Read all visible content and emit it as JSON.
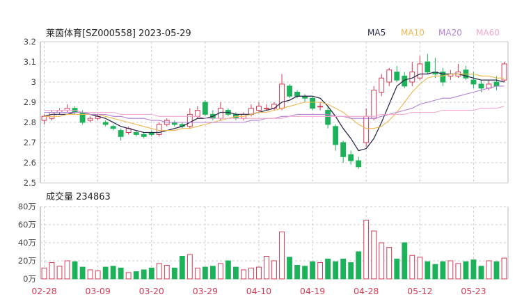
{
  "title": "莱茵体育[SZ000558] 2023-05-29",
  "volume_title": "成交量 234863",
  "legend": [
    {
      "label": "MA5",
      "color": "#2a2a4a"
    },
    {
      "label": "MA10",
      "color": "#f0b64e"
    },
    {
      "label": "MA20",
      "color": "#b67fd6"
    },
    {
      "label": "MA60",
      "color": "#f3a9cf"
    }
  ],
  "colors": {
    "up": "#d63a54",
    "down": "#1db25a",
    "grid": "#cccccc",
    "axis": "#444444",
    "date_label": "#d63a54"
  },
  "chart_data": [
    {
      "type": "candlestick",
      "title": "莱茵体育[SZ000558] 2023-05-29",
      "dates": [
        "02-28",
        "03-01",
        "03-02",
        "03-03",
        "03-06",
        "03-07",
        "03-08",
        "03-09",
        "03-10",
        "03-13",
        "03-14",
        "03-15",
        "03-16",
        "03-17",
        "03-20",
        "03-21",
        "03-22",
        "03-23",
        "03-24",
        "03-27",
        "03-28",
        "03-29",
        "03-30",
        "03-31",
        "04-03",
        "04-04",
        "04-06",
        "04-07",
        "04-10",
        "04-11",
        "04-12",
        "04-13",
        "04-14",
        "04-17",
        "04-18",
        "04-19",
        "04-20",
        "04-21",
        "04-24",
        "04-25",
        "04-26",
        "04-27",
        "04-28",
        "05-04",
        "05-05",
        "05-08",
        "05-09",
        "05-10",
        "05-11",
        "05-12",
        "05-15",
        "05-16",
        "05-17",
        "05-18",
        "05-19",
        "05-22",
        "05-23",
        "05-24",
        "05-25",
        "05-26",
        "05-29"
      ],
      "open": [
        2.81,
        2.82,
        2.85,
        2.86,
        2.87,
        2.85,
        2.81,
        2.82,
        2.8,
        2.78,
        2.76,
        2.75,
        2.75,
        2.74,
        2.75,
        2.74,
        2.79,
        2.8,
        2.79,
        2.78,
        2.83,
        2.9,
        2.84,
        2.82,
        2.86,
        2.84,
        2.82,
        2.84,
        2.86,
        2.87,
        2.87,
        2.87,
        2.98,
        2.95,
        2.93,
        2.92,
        2.88,
        2.86,
        2.78,
        2.7,
        2.64,
        2.61,
        2.7,
        2.82,
        2.95,
        3.0,
        3.05,
        3.03,
        3.0,
        3.02,
        3.1,
        3.05,
        3.05,
        3.03,
        3.03,
        3.06,
        3.01,
        2.99,
        2.97,
        3.0,
        3.01
      ],
      "close": [
        2.83,
        2.85,
        2.86,
        2.87,
        2.85,
        2.8,
        2.82,
        2.83,
        2.79,
        2.77,
        2.73,
        2.77,
        2.74,
        2.73,
        2.74,
        2.79,
        2.81,
        2.79,
        2.78,
        2.84,
        2.86,
        2.84,
        2.82,
        2.87,
        2.84,
        2.82,
        2.84,
        2.87,
        2.88,
        2.87,
        2.89,
        2.99,
        2.93,
        2.93,
        2.92,
        2.87,
        2.88,
        2.79,
        2.69,
        2.63,
        2.61,
        2.58,
        2.83,
        2.96,
        3.02,
        3.06,
        3.01,
        2.98,
        3.05,
        3.09,
        3.05,
        3.04,
        3.0,
        3.04,
        3.05,
        3.02,
        2.99,
        2.97,
        2.99,
        2.98,
        3.09
      ],
      "high": [
        2.84,
        2.86,
        2.87,
        2.89,
        2.88,
        2.86,
        2.83,
        2.84,
        2.81,
        2.79,
        2.77,
        2.78,
        2.76,
        2.75,
        2.76,
        2.8,
        2.82,
        2.81,
        2.8,
        2.87,
        2.88,
        2.91,
        2.86,
        2.9,
        2.87,
        2.85,
        2.85,
        2.89,
        2.9,
        2.89,
        2.9,
        3.04,
        2.99,
        2.96,
        2.94,
        2.93,
        2.9,
        2.88,
        2.79,
        2.71,
        2.66,
        2.63,
        2.87,
        2.98,
        3.04,
        3.07,
        3.08,
        3.05,
        3.1,
        3.13,
        3.14,
        3.12,
        3.07,
        3.06,
        3.09,
        3.08,
        3.05,
        3.01,
        3.01,
        3.03,
        3.1
      ],
      "low": [
        2.79,
        2.81,
        2.84,
        2.85,
        2.84,
        2.79,
        2.8,
        2.81,
        2.78,
        2.76,
        2.71,
        2.74,
        2.73,
        2.72,
        2.73,
        2.73,
        2.78,
        2.78,
        2.77,
        2.77,
        2.82,
        2.83,
        2.81,
        2.81,
        2.83,
        2.81,
        2.81,
        2.83,
        2.85,
        2.86,
        2.86,
        2.86,
        2.92,
        2.92,
        2.9,
        2.86,
        2.86,
        2.77,
        2.66,
        2.6,
        2.59,
        2.57,
        2.68,
        2.81,
        2.93,
        2.98,
        3.0,
        2.97,
        2.98,
        3.01,
        3.04,
        3.02,
        2.98,
        3.01,
        3.02,
        3.01,
        2.97,
        2.95,
        2.96,
        2.96,
        3.0
      ],
      "ma": {
        "MA5": [
          2.83,
          2.84,
          2.84,
          2.84,
          2.85,
          2.85,
          2.84,
          2.83,
          2.82,
          2.8,
          2.78,
          2.77,
          2.76,
          2.75,
          2.75,
          2.75,
          2.76,
          2.77,
          2.78,
          2.8,
          2.82,
          2.82,
          2.83,
          2.85,
          2.85,
          2.84,
          2.84,
          2.84,
          2.85,
          2.86,
          2.87,
          2.9,
          2.91,
          2.93,
          2.93,
          2.93,
          2.92,
          2.88,
          2.83,
          2.77,
          2.72,
          2.66,
          2.67,
          2.72,
          2.8,
          2.89,
          2.98,
          3.01,
          3.02,
          3.04,
          3.04,
          3.05,
          3.04,
          3.04,
          3.04,
          3.03,
          3.02,
          3.01,
          3.01,
          3.01,
          3.0
        ],
        "MA10": [
          2.83,
          2.83,
          2.83,
          2.84,
          2.84,
          2.84,
          2.84,
          2.84,
          2.83,
          2.82,
          2.81,
          2.8,
          2.79,
          2.78,
          2.77,
          2.76,
          2.76,
          2.76,
          2.77,
          2.77,
          2.78,
          2.79,
          2.8,
          2.81,
          2.82,
          2.83,
          2.83,
          2.84,
          2.85,
          2.85,
          2.86,
          2.87,
          2.88,
          2.89,
          2.9,
          2.9,
          2.9,
          2.89,
          2.87,
          2.85,
          2.82,
          2.79,
          2.77,
          2.77,
          2.78,
          2.81,
          2.85,
          2.9,
          2.95,
          2.99,
          3.02,
          3.03,
          3.03,
          3.04,
          3.04,
          3.04,
          3.04,
          3.03,
          3.03,
          3.02,
          3.02
        ],
        "MA20": [
          2.85,
          2.85,
          2.85,
          2.85,
          2.85,
          2.85,
          2.84,
          2.84,
          2.84,
          2.83,
          2.83,
          2.82,
          2.82,
          2.82,
          2.81,
          2.81,
          2.8,
          2.8,
          2.8,
          2.8,
          2.8,
          2.8,
          2.8,
          2.8,
          2.8,
          2.8,
          2.8,
          2.81,
          2.81,
          2.82,
          2.82,
          2.83,
          2.83,
          2.84,
          2.84,
          2.84,
          2.84,
          2.84,
          2.83,
          2.83,
          2.82,
          2.82,
          2.82,
          2.82,
          2.83,
          2.84,
          2.85,
          2.86,
          2.87,
          2.89,
          2.9,
          2.91,
          2.92,
          2.92,
          2.93,
          2.94,
          2.95,
          2.96,
          2.97,
          2.98,
          2.98
        ],
        "MA60": [
          2.86,
          2.86,
          2.86,
          2.86,
          2.86,
          2.85,
          2.85,
          2.85,
          2.85,
          2.85,
          2.84,
          2.84,
          2.84,
          2.84,
          2.84,
          2.83,
          2.83,
          2.83,
          2.83,
          2.83,
          2.83,
          2.82,
          2.82,
          2.82,
          2.82,
          2.82,
          2.82,
          2.82,
          2.82,
          2.82,
          2.82,
          2.82,
          2.83,
          2.83,
          2.83,
          2.83,
          2.83,
          2.83,
          2.83,
          2.83,
          2.83,
          2.83,
          2.83,
          2.83,
          2.84,
          2.84,
          2.84,
          2.84,
          2.85,
          2.85,
          2.85,
          2.85,
          2.86,
          2.86,
          2.86,
          2.86,
          2.86,
          2.87,
          2.87,
          2.87,
          2.88
        ]
      },
      "ylim": [
        2.5,
        3.2
      ],
      "yticks": [
        2.5,
        2.6,
        2.7,
        2.8,
        2.9,
        3,
        3.1,
        3.2
      ],
      "xtick_labels": [
        "02-28",
        "03-09",
        "03-20",
        "03-29",
        "04-10",
        "04-19",
        "04-28",
        "05-12",
        "05-23"
      ],
      "legend": [
        "MA5",
        "MA10",
        "MA20",
        "MA60"
      ],
      "legend_position": "top-right",
      "grid": true
    },
    {
      "type": "bar",
      "title": "成交量 234863",
      "volume": [
        12,
        18,
        14,
        20,
        19,
        13,
        10,
        9,
        13,
        14,
        12,
        7,
        8,
        10,
        12,
        17,
        15,
        12,
        25,
        27,
        12,
        13,
        14,
        17,
        20,
        13,
        10,
        12,
        13,
        25,
        20,
        52,
        24,
        15,
        14,
        19,
        18,
        22,
        19,
        22,
        18,
        30,
        65,
        53,
        40,
        35,
        22,
        40,
        26,
        24,
        19,
        16,
        19,
        20,
        17,
        19,
        21,
        14,
        20,
        19,
        23
      ],
      "volume_unit": "万",
      "yticks": [
        0,
        20,
        40,
        60,
        80
      ],
      "ytick_labels": [
        "0万",
        "20万",
        "40万",
        "60万",
        "80万"
      ],
      "ylim": [
        0,
        80
      ],
      "grid": true
    }
  ]
}
